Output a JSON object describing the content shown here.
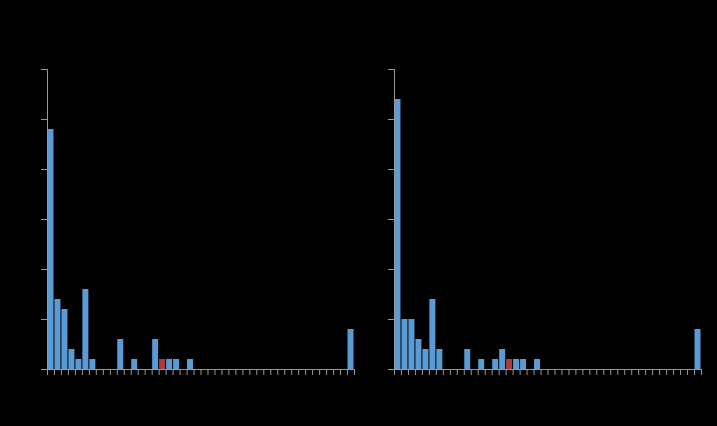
{
  "chart_data": [
    {
      "type": "bar",
      "categories": [
        null,
        null,
        null,
        null,
        null,
        null,
        null,
        null,
        null,
        null,
        null,
        null,
        null,
        null,
        null,
        null,
        null,
        null,
        null,
        null,
        null,
        null,
        null,
        null,
        null,
        null,
        null,
        null,
        null,
        null,
        null,
        null,
        null,
        null,
        null,
        null,
        null,
        null,
        null,
        null,
        null,
        null,
        null,
        null
      ],
      "values": [
        24,
        7,
        6,
        2,
        1,
        8,
        1,
        0,
        0,
        0,
        3,
        0,
        1,
        0,
        0,
        3,
        1,
        1,
        1,
        0,
        1,
        0,
        0,
        0,
        0,
        0,
        0,
        0,
        0,
        0,
        0,
        0,
        0,
        0,
        0,
        0,
        0,
        0,
        0,
        0,
        0,
        0,
        0,
        4
      ],
      "colors": [
        "#5b9bd5",
        "#5b9bd5",
        "#5b9bd5",
        "#5b9bd5",
        "#5b9bd5",
        "#5b9bd5",
        "#5b9bd5",
        "#5b9bd5",
        "#5b9bd5",
        "#5b9bd5",
        "#5b9bd5",
        "#5b9bd5",
        "#5b9bd5",
        "#5b9bd5",
        "#5b9bd5",
        "#5b9bd5",
        "#b03a3a",
        "#5b9bd5",
        "#5b9bd5",
        "#5b9bd5",
        "#5b9bd5",
        "#5b9bd5",
        "#5b9bd5",
        "#5b9bd5",
        "#5b9bd5",
        "#5b9bd5",
        "#5b9bd5",
        "#5b9bd5",
        "#5b9bd5",
        "#5b9bd5",
        "#5b9bd5",
        "#5b9bd5",
        "#5b9bd5",
        "#5b9bd5",
        "#5b9bd5",
        "#5b9bd5",
        "#5b9bd5",
        "#5b9bd5",
        "#5b9bd5",
        "#5b9bd5",
        "#5b9bd5",
        "#5b9bd5",
        "#5b9bd5",
        "#5b9bd5"
      ],
      "ylim": [
        0,
        30
      ],
      "yticks": [
        0,
        5,
        10,
        15,
        20,
        25,
        30
      ],
      "tick_labels": false
    },
    {
      "type": "bar",
      "categories": [
        null,
        null,
        null,
        null,
        null,
        null,
        null,
        null,
        null,
        null,
        null,
        null,
        null,
        null,
        null,
        null,
        null,
        null,
        null,
        null,
        null,
        null,
        null,
        null,
        null,
        null,
        null,
        null,
        null,
        null,
        null,
        null,
        null,
        null,
        null,
        null,
        null,
        null,
        null,
        null,
        null,
        null,
        null,
        null
      ],
      "values": [
        27,
        5,
        5,
        3,
        2,
        7,
        2,
        0,
        0,
        0,
        2,
        0,
        1,
        0,
        1,
        2,
        1,
        1,
        1,
        0,
        1,
        0,
        0,
        0,
        0,
        0,
        0,
        0,
        0,
        0,
        0,
        0,
        0,
        0,
        0,
        0,
        0,
        0,
        0,
        0,
        0,
        0,
        0,
        4
      ],
      "colors": [
        "#5b9bd5",
        "#5b9bd5",
        "#5b9bd5",
        "#5b9bd5",
        "#5b9bd5",
        "#5b9bd5",
        "#5b9bd5",
        "#5b9bd5",
        "#5b9bd5",
        "#5b9bd5",
        "#5b9bd5",
        "#5b9bd5",
        "#5b9bd5",
        "#5b9bd5",
        "#5b9bd5",
        "#5b9bd5",
        "#b03a3a",
        "#5b9bd5",
        "#5b9bd5",
        "#5b9bd5",
        "#5b9bd5",
        "#5b9bd5",
        "#5b9bd5",
        "#5b9bd5",
        "#5b9bd5",
        "#5b9bd5",
        "#5b9bd5",
        "#5b9bd5",
        "#5b9bd5",
        "#5b9bd5",
        "#5b9bd5",
        "#5b9bd5",
        "#5b9bd5",
        "#5b9bd5",
        "#5b9bd5",
        "#5b9bd5",
        "#5b9bd5",
        "#5b9bd5",
        "#5b9bd5",
        "#5b9bd5",
        "#5b9bd5",
        "#5b9bd5",
        "#5b9bd5",
        "#5b9bd5"
      ],
      "ylim": [
        0,
        30
      ],
      "yticks": [
        0,
        5,
        10,
        15,
        20,
        25,
        30
      ],
      "tick_labels": false
    }
  ]
}
